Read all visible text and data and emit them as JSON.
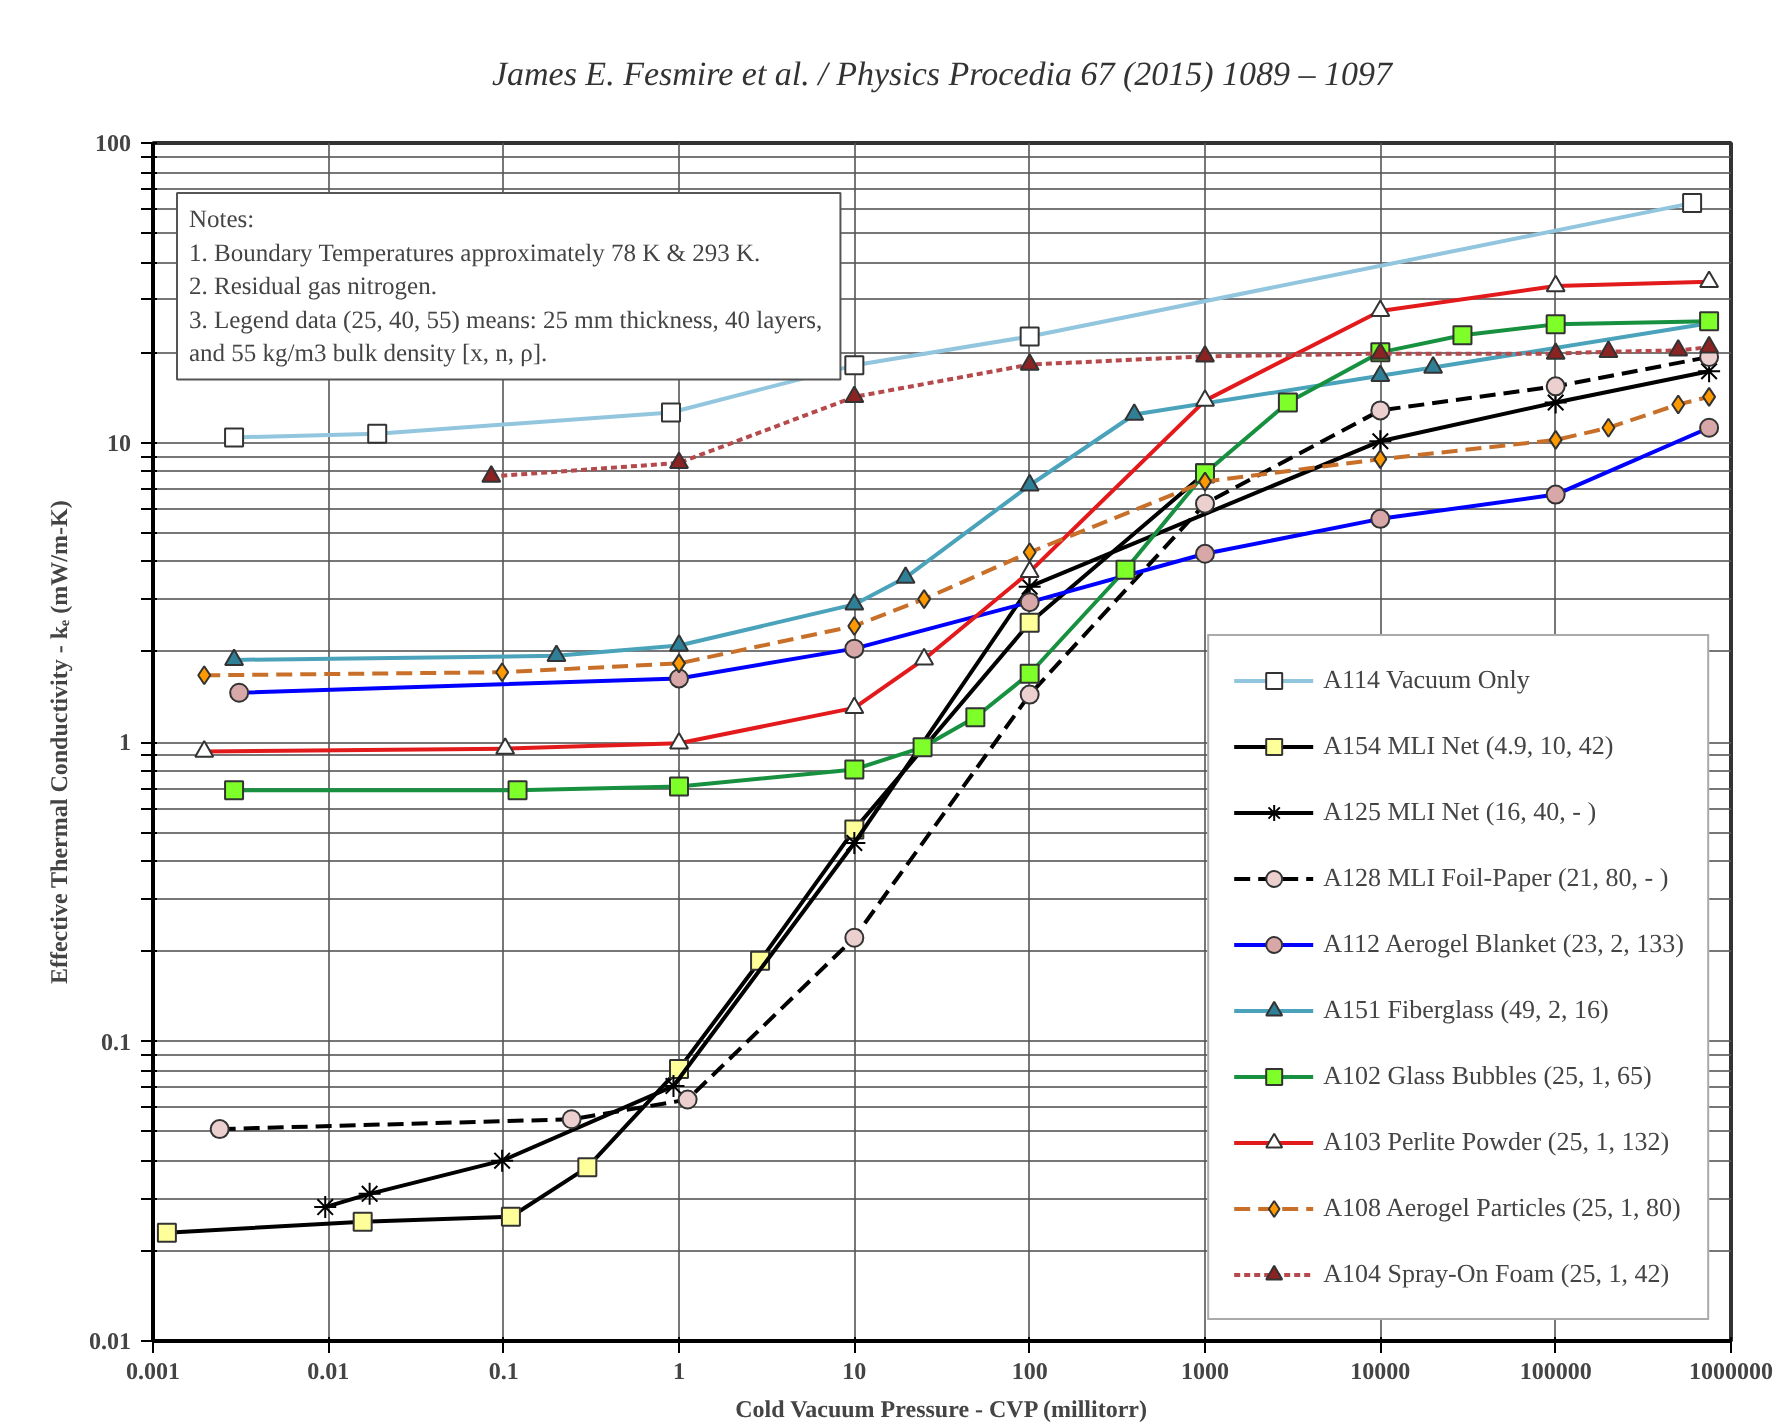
{
  "chart_data": {
    "type": "line",
    "title": "James E. Fesmire et al. / Physics Procedia 67 (2015) 1089 – 1097",
    "xlabel": "Cold Vacuum Pressure - CVP (millitorr)",
    "ylabel": "Effective Thermal Conductivity - kₑ (mW/m-K)",
    "log": "xy",
    "grid": true,
    "legend": "bottom right",
    "xlim": [
      0.001,
      1000000
    ],
    "ylim": [
      0.01,
      100
    ],
    "xticks": [
      0.001,
      0.01,
      0.1,
      1,
      10,
      100,
      1000,
      10000,
      100000,
      1000000
    ],
    "yticks": [
      0.01,
      {
        "value": 0.02,
        "label": null
      },
      {
        "value": 0.03,
        "label": null
      },
      {
        "value": 0.04,
        "label": null
      },
      {
        "value": 0.05,
        "label": null
      },
      {
        "value": 0.06,
        "label": null
      },
      {
        "value": 0.07,
        "label": null
      },
      {
        "value": 0.08,
        "label": null
      },
      {
        "value": 0.09,
        "label": null
      },
      0.1,
      {
        "value": 0.2,
        "label": null
      },
      {
        "value": 0.3,
        "label": null
      },
      {
        "value": 0.4,
        "label": null
      },
      {
        "value": 0.5,
        "label": null
      },
      {
        "value": 0.6,
        "label": null
      },
      {
        "value": 0.7,
        "label": null
      },
      {
        "value": 0.8,
        "label": null
      },
      {
        "value": 0.9,
        "label": null
      },
      1,
      {
        "value": 2,
        "label": null
      },
      {
        "value": 3,
        "label": null
      },
      {
        "value": 4,
        "label": null
      },
      {
        "value": 5,
        "label": null
      },
      {
        "value": 6,
        "label": null
      },
      {
        "value": 7,
        "label": null
      },
      {
        "value": 8,
        "label": null
      },
      {
        "value": 9,
        "label": null
      },
      10,
      {
        "value": 20,
        "label": null
      },
      {
        "value": 30,
        "label": null
      },
      {
        "value": 40,
        "label": null
      },
      {
        "value": 50,
        "label": null
      },
      {
        "value": 60,
        "label": null
      },
      {
        "value": 70,
        "label": null
      },
      {
        "value": 80,
        "label": null
      },
      {
        "value": 90,
        "label": null
      },
      100
    ],
    "annotations": [
      "Notes:\n1. Boundary Temperatures approximately 78 K  & 293 K.\n2. Residual gas nitrogen.\n3. Legend data (25, 40, 55) means: 25 mm  thickness, 40 layers,\nand 55 kg/m3 bulk density [x, n, ρ]."
    ],
    "series": [
      {
        "name": "A114 Vacuum Only",
        "color": "#92c5de",
        "marker": "square",
        "line_style": "solid",
        "x": [
          0.0029,
          0.019,
          0.9,
          10,
          100,
          600000
        ],
        "values": [
          10.4,
          10.7,
          12.6,
          18.1,
          22.6,
          63
        ],
        "colors": [
          "#ffffff",
          "#ffffff",
          "#ffffff",
          "#ffffff",
          "#ffffff",
          "#ffffff"
        ]
      },
      {
        "name": "A154 MLI Net (4.9, 10, 42)",
        "color": "#000000",
        "marker": "square",
        "line_style": "solid",
        "x": [
          0.0012,
          0.0157,
          0.11,
          0.3,
          1,
          2.9,
          10,
          100,
          1000
        ],
        "values": [
          0.023,
          0.025,
          0.026,
          0.038,
          0.081,
          0.186,
          0.51,
          2.5,
          7.9
        ],
        "colors": [
          "#ffff99",
          "#ffff99",
          "#ffff99",
          "#ffff99",
          "#ffff99",
          "#ffff99",
          "#ffff99",
          "#ffff99",
          "#ffff99"
        ]
      },
      {
        "name": "A125 MLI Net (16, 40, - )",
        "color": "#000000",
        "marker": "cross",
        "line_style": "solid",
        "x": [
          0.0096,
          0.0172,
          0.098,
          0.93,
          10,
          100,
          10000,
          100000,
          750000
        ],
        "values": [
          0.028,
          0.031,
          0.04,
          0.071,
          0.46,
          3.3,
          10.1,
          13.6,
          17.3
        ],
        "colors": [
          "#000000",
          "#000000",
          "#000000",
          "#000000",
          "#000000",
          "#000000",
          "#000000",
          "#000000",
          "#000000"
        ]
      },
      {
        "name": "A128 MLI Foil-Paper (21, 80, - )",
        "color": "#000000",
        "marker": "circle",
        "line_style": "dashed",
        "x": [
          0.0024,
          0.244,
          1.12,
          10,
          100,
          1000,
          10000,
          100000,
          750000
        ],
        "values": [
          0.051,
          0.055,
          0.064,
          0.222,
          1.44,
          6.25,
          12.8,
          15.4,
          19.3
        ],
        "colors": [
          "#ecd0d0",
          "#ecd0d0",
          "#ecd0d0",
          "#ecd0d0",
          "#ecd0d0",
          "#ecd0d0",
          "#ecd0d0",
          "#ecd0d0",
          "#ecd0d0"
        ]
      },
      {
        "name": "A112 Aerogel Blanket (23, 2, 133)",
        "color": "#0000ff",
        "marker": "circle",
        "line_style": "solid",
        "x": [
          0.0031,
          1,
          10,
          100,
          1000,
          10000,
          100000,
          750000
        ],
        "values": [
          1.46,
          1.63,
          2.05,
          2.93,
          4.25,
          5.56,
          6.7,
          11.2
        ],
        "colors": [
          "#d8a8a8",
          "#d8a8a8",
          "#d8a8a8",
          "#d8a8a8",
          "#d8a8a8",
          "#d8a8a8",
          "#d8a8a8",
          "#d8a8a8"
        ]
      },
      {
        "name": "A151 Fiberglass (49, 2, 16)",
        "color": "#4aa3ba",
        "marker": "triangle",
        "line_style": "solid",
        "x": [
          0.0029,
          0.2,
          1,
          10,
          19.6,
          100,
          395,
          10000,
          20000,
          750000
        ],
        "values": [
          1.88,
          1.94,
          2.1,
          2.88,
          3.54,
          7.2,
          12.4,
          16.7,
          17.8,
          25
        ],
        "colors": [
          "#2f7f96",
          "#2f7f96",
          "#2f7f96",
          "#2f7f96",
          "#2f7f96",
          "#2f7f96",
          "#2f7f96",
          "#2f7f96",
          "#2f7f96",
          "#2f7f96"
        ]
      },
      {
        "name": "A102 Glass Bubbles (25, 1, 65)",
        "color": "#17913f",
        "marker": "square",
        "line_style": "solid",
        "x": [
          0.0029,
          0.12,
          1,
          10,
          24.5,
          49,
          100,
          352,
          1000,
          2970,
          10000,
          29400,
          100000,
          750000
        ],
        "values": [
          0.69,
          0.69,
          0.71,
          0.81,
          0.96,
          1.21,
          1.69,
          3.76,
          7.9,
          13.6,
          20,
          22.8,
          24.8,
          25.4
        ],
        "colors": [
          "#7fff2a",
          "#7fff2a",
          "#7fff2a",
          "#7fff2a",
          "#7fff2a",
          "#7fff2a",
          "#7fff2a",
          "#7fff2a",
          "#7fff2a",
          "#7fff2a",
          "#7fff2a",
          "#7fff2a",
          "#7fff2a",
          "#7fff2a"
        ]
      },
      {
        "name": "A103 Perlite Powder (25, 1, 132)",
        "color": "#e31a1c",
        "marker": "triangle",
        "line_style": "solid",
        "x": [
          0.00196,
          0.102,
          1,
          10,
          25,
          100,
          1000,
          10000,
          100000,
          750000
        ],
        "values": [
          0.93,
          0.95,
          0.99,
          1.3,
          1.89,
          3.7,
          13.8,
          27.5,
          33.3,
          34.4
        ],
        "colors": [
          "#ffffff",
          "#ffffff",
          "#ffffff",
          "#ffffff",
          "#ffffff",
          "#ffffff",
          "#ffffff",
          "#ffffff",
          "#ffffff",
          "#ffffff"
        ]
      },
      {
        "name": "A108 Aerogel Particles (25, 1, 80)",
        "color": "#c8702a",
        "marker": "diamond",
        "line_style": "dashed",
        "x": [
          0.00196,
          0.098,
          1,
          10,
          25,
          100,
          1000,
          10000,
          100000,
          200000,
          500000,
          750000
        ],
        "values": [
          1.67,
          1.71,
          1.83,
          2.44,
          3.0,
          4.3,
          7.4,
          8.8,
          10.2,
          11.2,
          13.4,
          14.2
        ],
        "colors": [
          "#ff9900",
          "#ff9900",
          "#ff9900",
          "#ff9900",
          "#ff9900",
          "#ff9900",
          "#ff9900",
          "#ff9900",
          "#ff9900",
          "#ff9900",
          "#ff9900",
          "#ff9900"
        ]
      },
      {
        "name": "A104 Spray-On Foam (25, 1, 42)",
        "color": "#b5494b",
        "marker": "triangle",
        "line_style": "dotted",
        "x": [
          0.085,
          1,
          10,
          100,
          1000,
          10000,
          100000,
          200000,
          500000,
          750000
        ],
        "values": [
          7.7,
          8.55,
          14.2,
          18.2,
          19.4,
          19.8,
          19.8,
          20.1,
          20.3,
          20.8
        ],
        "colors": [
          "#8b2323",
          "#8b2323",
          "#8b2323",
          "#8b2323",
          "#8b2323",
          "#8b2323",
          "#8b2323",
          "#8b2323",
          "#8b2323",
          "#8b2323"
        ]
      }
    ]
  }
}
